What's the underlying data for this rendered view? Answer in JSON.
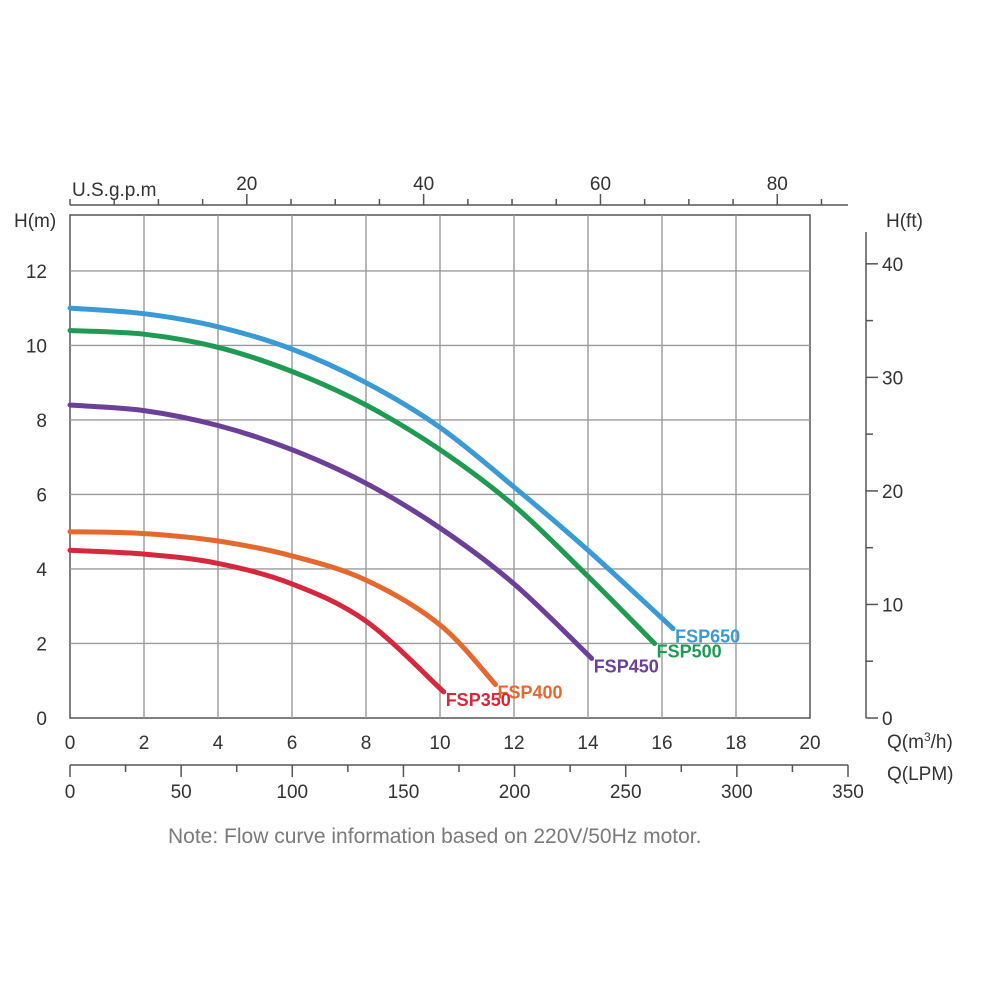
{
  "chart_data": {
    "type": "line",
    "note": "Note: Flow curve information based on 220V/50Hz motor.",
    "grid": true,
    "axes": {
      "x_bottom": {
        "label": "Q(m³/h)",
        "label_base": "Q(m",
        "label_sup": "3",
        "label_end": "/h)",
        "range": [
          0,
          20
        ],
        "ticks": [
          "0",
          "2",
          "4",
          "6",
          "8",
          "10",
          "12",
          "14",
          "16",
          "18",
          "20"
        ]
      },
      "x_lpm": {
        "label": "Q(LPM)",
        "range": [
          0,
          350
        ],
        "ticks": [
          "0",
          "50",
          "100",
          "150",
          "200",
          "250",
          "300",
          "350"
        ]
      },
      "x_top": {
        "label": "U.S.g.p.m",
        "range": [
          0,
          88
        ],
        "ticks": [
          "20",
          "40",
          "60",
          "80"
        ]
      },
      "y_left": {
        "label": "H(m)",
        "range": [
          0,
          13.5
        ],
        "ticks": [
          "0",
          "2",
          "4",
          "6",
          "8",
          "10",
          "12"
        ]
      },
      "y_right": {
        "label": "H(ft)",
        "range": [
          0,
          44.3
        ],
        "ticks": [
          "0",
          "10",
          "20",
          "30",
          "40"
        ]
      }
    },
    "series": [
      {
        "name": "FSP650",
        "color": "#3a9ad6",
        "x": [
          0,
          2,
          4,
          6,
          8,
          10,
          12,
          14,
          16.3
        ],
        "y": [
          11.0,
          10.85,
          10.5,
          9.9,
          9.0,
          7.8,
          6.2,
          4.5,
          2.4
        ]
      },
      {
        "name": "FSP500",
        "color": "#1f9a52",
        "x": [
          0,
          2,
          4,
          6,
          8,
          10,
          12,
          14,
          15.8
        ],
        "y": [
          10.4,
          10.3,
          9.95,
          9.3,
          8.4,
          7.2,
          5.7,
          3.8,
          2.0
        ]
      },
      {
        "name": "FSP450",
        "color": "#6c3f98",
        "x": [
          0,
          2,
          4,
          6,
          8,
          10,
          12,
          14.1
        ],
        "y": [
          8.4,
          8.25,
          7.85,
          7.2,
          6.3,
          5.1,
          3.6,
          1.6
        ]
      },
      {
        "name": "FSP400",
        "color": "#e5682f",
        "x": [
          0,
          2,
          4,
          6,
          8,
          10,
          11.5
        ],
        "y": [
          5.0,
          4.95,
          4.75,
          4.35,
          3.7,
          2.5,
          0.9
        ]
      },
      {
        "name": "FSP350",
        "color": "#d6283c",
        "x": [
          0,
          2,
          4,
          6,
          8,
          10.1
        ],
        "y": [
          4.5,
          4.4,
          4.15,
          3.6,
          2.6,
          0.7
        ]
      }
    ]
  }
}
